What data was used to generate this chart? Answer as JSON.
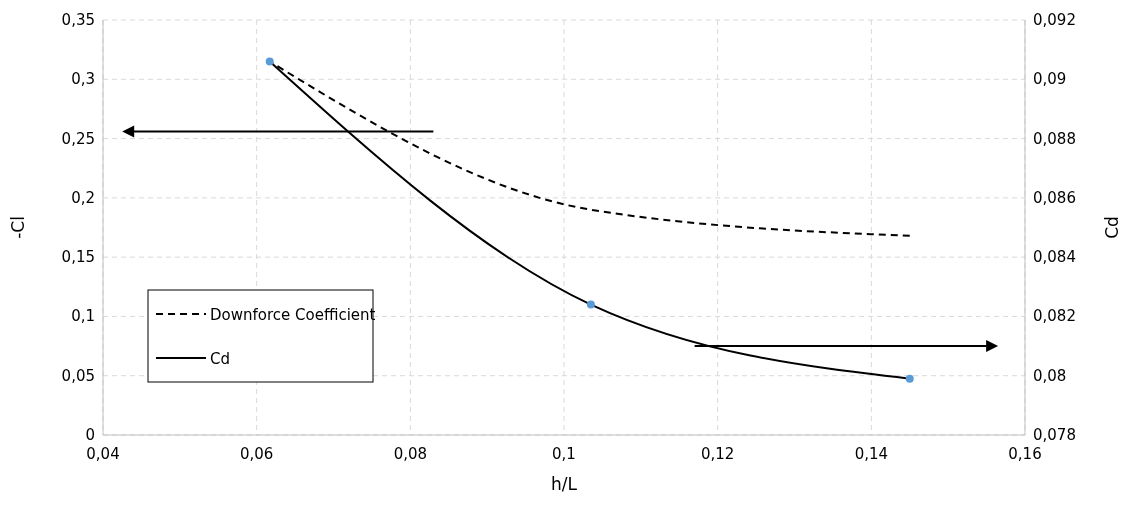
{
  "chart_data": {
    "type": "line",
    "xlabel": "h/L",
    "ylabel": "-Cl",
    "y2label": "Cd",
    "series": [
      {
        "name": "Downforce Coefficient",
        "color": "#000000",
        "x": [
          0.0617,
          0.1035,
          0.145
        ],
        "values": [
          0.315,
          0.19,
          0.168
        ],
        "line_style": "dashed",
        "marker": "none"
      },
      {
        "name": "Cd",
        "color": "#000000",
        "x": [
          0.0617,
          0.1035,
          0.145
        ],
        "values": [
          0.0906,
          0.0824,
          0.0799
        ],
        "axis": "y2",
        "line_style": "solid",
        "marker": "circle"
      }
    ],
    "xlim": [
      0.04,
      0.16
    ],
    "xticks": [
      {
        "value": 0.04,
        "label": "0,04"
      },
      {
        "value": 0.06,
        "label": "0,06"
      },
      {
        "value": 0.08,
        "label": "0,08"
      },
      {
        "value": 0.1,
        "label": "0,1"
      },
      {
        "value": 0.12,
        "label": "0,12"
      },
      {
        "value": 0.14,
        "label": "0,14"
      },
      {
        "value": 0.16,
        "label": "0,16"
      }
    ],
    "ylim": [
      0,
      0.35
    ],
    "yticks": [
      0,
      {
        "value": 0.05,
        "label": "0,05"
      },
      {
        "value": 0.1,
        "label": "0,1"
      },
      {
        "value": 0.15,
        "label": "0,15"
      },
      {
        "value": 0.2,
        "label": "0,2"
      },
      {
        "value": 0.25,
        "label": "0,25"
      },
      {
        "value": 0.3,
        "label": "0,3"
      },
      {
        "value": 0.35,
        "label": "0,35"
      }
    ],
    "y2lim": [
      0.078,
      0.092
    ],
    "y2ticks": [
      {
        "value": 0.078,
        "label": "0,078"
      },
      {
        "value": 0.08,
        "label": "0,08"
      },
      {
        "value": 0.082,
        "label": "0,082"
      },
      {
        "value": 0.084,
        "label": "0,084"
      },
      {
        "value": 0.086,
        "label": "0,086"
      },
      {
        "value": 0.088,
        "label": "0,088"
      },
      {
        "value": 0.09,
        "label": "0,09"
      },
      {
        "value": 0.092,
        "label": "0,092"
      }
    ],
    "grid": true,
    "legend": "bottom left"
  }
}
